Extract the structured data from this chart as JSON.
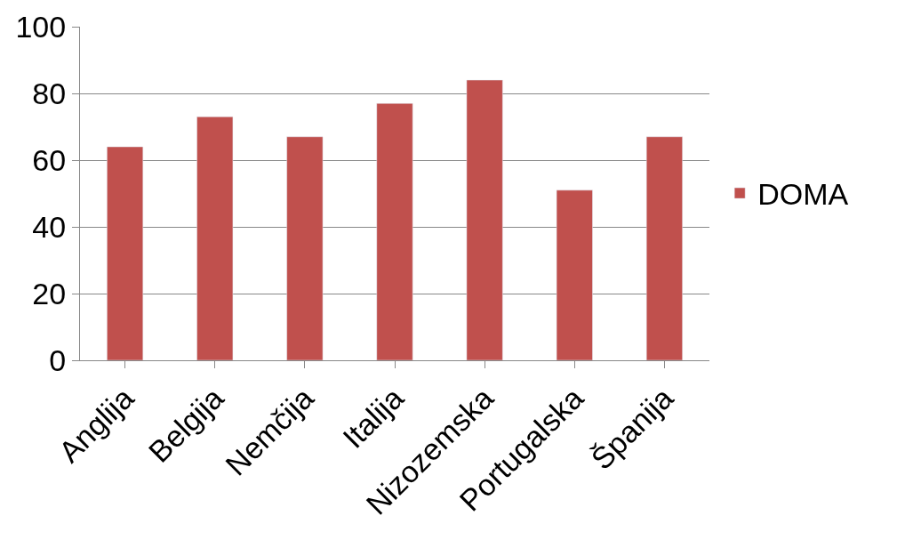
{
  "chart_data": {
    "type": "bar",
    "categories": [
      "Anglija",
      "Belgija",
      "Nemčija",
      "Italija",
      "Nizozemska",
      "Portugalska",
      "Španija"
    ],
    "series": [
      {
        "name": "DOMA",
        "color": "#c0504d",
        "values": [
          64,
          73,
          67,
          77,
          84,
          51,
          67
        ]
      }
    ],
    "ylim": [
      0,
      100
    ],
    "yticks": [
      0,
      20,
      40,
      60,
      80,
      100
    ],
    "grid": "y",
    "legend": "right"
  }
}
